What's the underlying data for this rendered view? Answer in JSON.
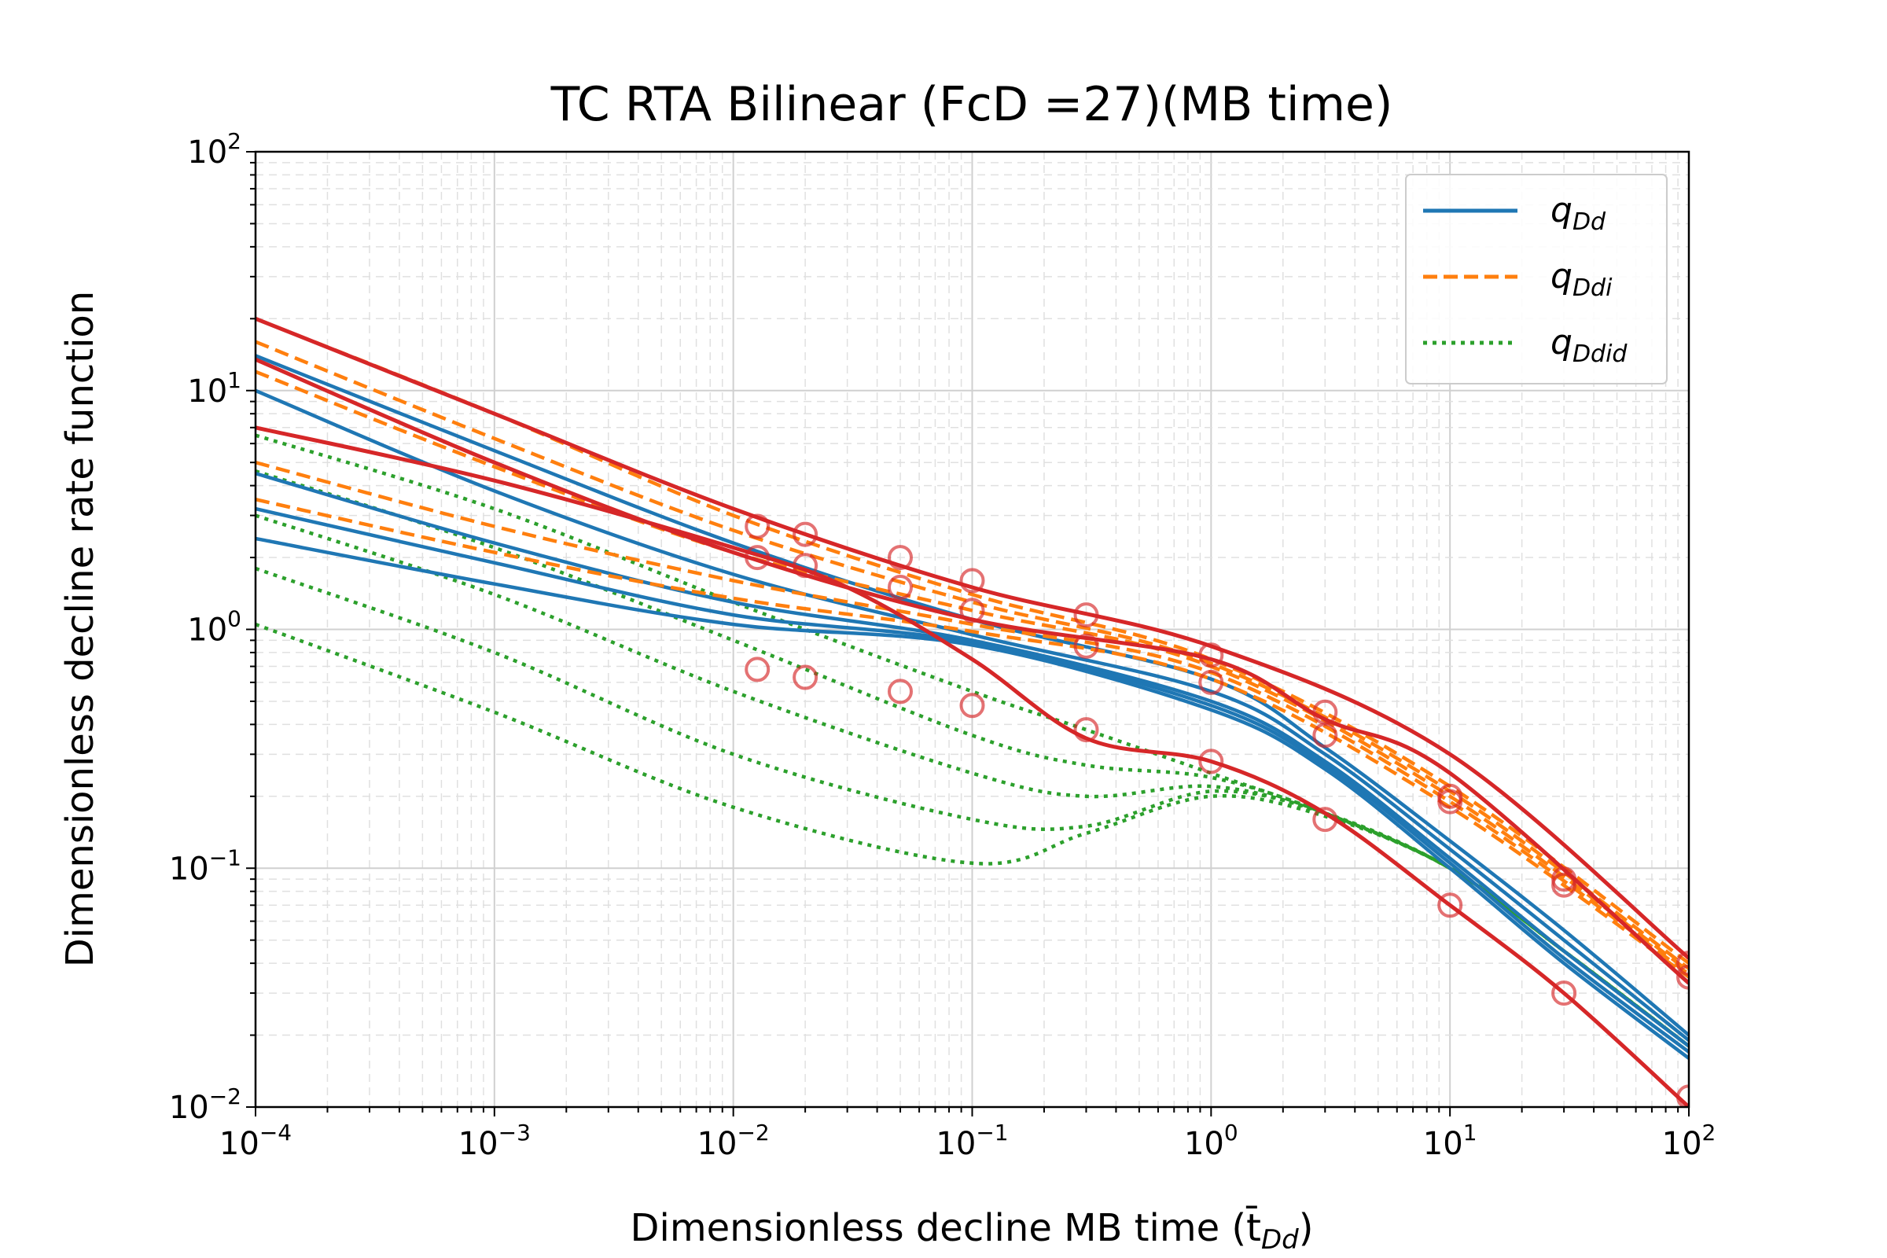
{
  "chart_data": {
    "type": "line",
    "title": "TC RTA Bilinear (FcD =27)(MB time)",
    "xlabel": "Dimensionless decline MB time (t̄",
    "xlabel_sub": "Dd",
    "xlabel_close": ")",
    "ylabel": "Dimensionless decline rate function",
    "x_scale": "log",
    "y_scale": "log",
    "xlim": [
      0.0001,
      100
    ],
    "ylim": [
      0.01,
      100
    ],
    "grid": true,
    "legend_position": "upper right",
    "x_ticks": [
      {
        "base": "10",
        "exp": "−4",
        "value": 0.0001
      },
      {
        "base": "10",
        "exp": "−3",
        "value": 0.001
      },
      {
        "base": "10",
        "exp": "−2",
        "value": 0.01
      },
      {
        "base": "10",
        "exp": "−1",
        "value": 0.1
      },
      {
        "base": "10",
        "exp": "0",
        "value": 1
      },
      {
        "base": "10",
        "exp": "1",
        "value": 10
      },
      {
        "base": "10",
        "exp": "2",
        "value": 100
      }
    ],
    "y_ticks": [
      {
        "base": "10",
        "exp": "−2",
        "value": 0.01
      },
      {
        "base": "10",
        "exp": "−1",
        "value": 0.1
      },
      {
        "base": "10",
        "exp": "0",
        "value": 1
      },
      {
        "base": "10",
        "exp": "1",
        "value": 10
      },
      {
        "base": "10",
        "exp": "2",
        "value": 100
      }
    ],
    "legend": [
      {
        "label": "q",
        "sub": "Dd",
        "color": "#1f77b4",
        "style": "solid"
      },
      {
        "label": "q",
        "sub": "Ddi",
        "color": "#ff7f0e",
        "style": "dashed"
      },
      {
        "label": "q",
        "sub": "Ddid",
        "color": "#2ca02c",
        "style": "dotted"
      }
    ],
    "colors": {
      "qDd": "#1f77b4",
      "qDdi": "#ff7f0e",
      "qDdid": "#2ca02c",
      "fit": "#d62728",
      "observed": "#d62728"
    },
    "series": [
      {
        "group": "qDd",
        "values": [
          [
            0.0001,
            14
          ],
          [
            0.001,
            5.6
          ],
          [
            0.01,
            2.3
          ],
          [
            0.1,
            1.1
          ],
          [
            1,
            0.62
          ],
          [
            3,
            0.32
          ],
          [
            10,
            0.13
          ],
          [
            30,
            0.055
          ],
          [
            100,
            0.02
          ]
        ]
      },
      {
        "group": "qDd",
        "values": [
          [
            0.0001,
            10
          ],
          [
            0.001,
            3.8
          ],
          [
            0.01,
            1.7
          ],
          [
            0.1,
            0.95
          ],
          [
            1,
            0.55
          ],
          [
            3,
            0.3
          ],
          [
            10,
            0.12
          ],
          [
            30,
            0.05
          ],
          [
            100,
            0.019
          ]
        ]
      },
      {
        "group": "qDd",
        "values": [
          [
            0.0001,
            4.5
          ],
          [
            0.001,
            2.3
          ],
          [
            0.01,
            1.3
          ],
          [
            0.1,
            0.9
          ],
          [
            1,
            0.5
          ],
          [
            3,
            0.28
          ],
          [
            10,
            0.11
          ],
          [
            30,
            0.045
          ],
          [
            100,
            0.018
          ]
        ]
      },
      {
        "group": "qDd",
        "values": [
          [
            0.0001,
            3.2
          ],
          [
            0.001,
            1.9
          ],
          [
            0.01,
            1.15
          ],
          [
            0.1,
            0.88
          ],
          [
            1,
            0.48
          ],
          [
            3,
            0.27
          ],
          [
            10,
            0.105
          ],
          [
            30,
            0.042
          ],
          [
            100,
            0.017
          ]
        ]
      },
      {
        "group": "qDd",
        "values": [
          [
            0.0001,
            2.4
          ],
          [
            0.001,
            1.55
          ],
          [
            0.01,
            1.05
          ],
          [
            0.1,
            0.86
          ],
          [
            1,
            0.46
          ],
          [
            3,
            0.26
          ],
          [
            10,
            0.1
          ],
          [
            30,
            0.04
          ],
          [
            100,
            0.016
          ]
        ]
      },
      {
        "group": "qDdi",
        "values": [
          [
            0.0001,
            20
          ],
          [
            0.001,
            8
          ],
          [
            0.01,
            3
          ],
          [
            0.1,
            1.4
          ],
          [
            1,
            0.75
          ],
          [
            10,
            0.22
          ],
          [
            100,
            0.04
          ]
        ]
      },
      {
        "group": "qDdi",
        "values": [
          [
            0.0001,
            16
          ],
          [
            0.001,
            6.3
          ],
          [
            0.01,
            2.6
          ],
          [
            0.1,
            1.3
          ],
          [
            1,
            0.72
          ],
          [
            10,
            0.21
          ],
          [
            100,
            0.038
          ]
        ]
      },
      {
        "group": "qDdi",
        "values": [
          [
            0.0001,
            12
          ],
          [
            0.001,
            4.8
          ],
          [
            0.01,
            2.1
          ],
          [
            0.1,
            1.2
          ],
          [
            1,
            0.7
          ],
          [
            10,
            0.2
          ],
          [
            100,
            0.037
          ]
        ]
      },
      {
        "group": "qDdi",
        "values": [
          [
            0.0001,
            5
          ],
          [
            0.001,
            2.7
          ],
          [
            0.01,
            1.6
          ],
          [
            0.1,
            1.05
          ],
          [
            1,
            0.66
          ],
          [
            10,
            0.19
          ],
          [
            100,
            0.036
          ]
        ]
      },
      {
        "group": "qDdi",
        "values": [
          [
            0.0001,
            3.5
          ],
          [
            0.001,
            2.1
          ],
          [
            0.01,
            1.35
          ],
          [
            0.1,
            0.98
          ],
          [
            1,
            0.62
          ],
          [
            10,
            0.18
          ],
          [
            100,
            0.035
          ]
        ]
      },
      {
        "group": "qDdid",
        "values": [
          [
            0.0001,
            6.5
          ],
          [
            0.001,
            3.2
          ],
          [
            0.01,
            1.3
          ],
          [
            0.1,
            0.55
          ],
          [
            0.3,
            0.38
          ],
          [
            1,
            0.25
          ],
          [
            3,
            0.17
          ],
          [
            10,
            0.1
          ],
          [
            30,
            0.045
          ],
          [
            100,
            0.018
          ]
        ]
      },
      {
        "group": "qDdid",
        "values": [
          [
            0.0001,
            4.6
          ],
          [
            0.001,
            2.2
          ],
          [
            0.01,
            0.9
          ],
          [
            0.1,
            0.36
          ],
          [
            0.3,
            0.27
          ],
          [
            1,
            0.24
          ],
          [
            3,
            0.17
          ],
          [
            10,
            0.1
          ],
          [
            30,
            0.045
          ],
          [
            100,
            0.018
          ]
        ]
      },
      {
        "group": "qDdid",
        "values": [
          [
            0.0001,
            3
          ],
          [
            0.001,
            1.4
          ],
          [
            0.01,
            0.55
          ],
          [
            0.1,
            0.25
          ],
          [
            0.3,
            0.2
          ],
          [
            1,
            0.22
          ],
          [
            3,
            0.17
          ],
          [
            10,
            0.1
          ],
          [
            30,
            0.045
          ],
          [
            100,
            0.018
          ]
        ]
      },
      {
        "group": "qDdid",
        "values": [
          [
            0.0001,
            1.8
          ],
          [
            0.001,
            0.8
          ],
          [
            0.01,
            0.3
          ],
          [
            0.1,
            0.16
          ],
          [
            0.3,
            0.15
          ],
          [
            1,
            0.21
          ],
          [
            3,
            0.17
          ],
          [
            10,
            0.1
          ],
          [
            30,
            0.045
          ],
          [
            100,
            0.018
          ]
        ]
      },
      {
        "group": "qDdid",
        "values": [
          [
            0.0001,
            1.05
          ],
          [
            0.001,
            0.45
          ],
          [
            0.01,
            0.18
          ],
          [
            0.1,
            0.105
          ],
          [
            0.3,
            0.14
          ],
          [
            1,
            0.2
          ],
          [
            3,
            0.165
          ],
          [
            10,
            0.1
          ],
          [
            30,
            0.045
          ],
          [
            100,
            0.018
          ]
        ]
      },
      {
        "group": "fit",
        "values": [
          [
            0.0001,
            20
          ],
          [
            0.001,
            8
          ],
          [
            0.01,
            3.2
          ],
          [
            0.1,
            1.5
          ],
          [
            1,
            0.85
          ],
          [
            10,
            0.3
          ],
          [
            100,
            0.042
          ]
        ]
      },
      {
        "group": "fit",
        "values": [
          [
            0.0001,
            13.5
          ],
          [
            0.001,
            5
          ],
          [
            0.01,
            2.1
          ],
          [
            0.1,
            1.1
          ],
          [
            1,
            0.75
          ],
          [
            3,
            0.42
          ],
          [
            10,
            0.25
          ],
          [
            100,
            0.033
          ]
        ]
      },
      {
        "group": "fit",
        "values": [
          [
            0.0001,
            7
          ],
          [
            0.001,
            4.2
          ],
          [
            0.01,
            2.2
          ],
          [
            0.03,
            1.5
          ],
          [
            0.1,
            0.75
          ],
          [
            0.3,
            0.35
          ],
          [
            1,
            0.28
          ],
          [
            3,
            0.17
          ],
          [
            10,
            0.07
          ],
          [
            30,
            0.03
          ],
          [
            100,
            0.01
          ]
        ]
      },
      {
        "group": "observed",
        "values": [
          [
            0.0126,
            2.7
          ],
          [
            0.02,
            2.5
          ],
          [
            0.05,
            2
          ],
          [
            0.1,
            1.6
          ],
          [
            0.3,
            1.15
          ],
          [
            1,
            0.78
          ],
          [
            3,
            0.45
          ],
          [
            10,
            0.2
          ],
          [
            30,
            0.09
          ],
          [
            100,
            0.04
          ]
        ]
      },
      {
        "group": "observed",
        "values": [
          [
            0.0126,
            2
          ],
          [
            0.02,
            1.85
          ],
          [
            0.05,
            1.5
          ],
          [
            0.1,
            1.2
          ],
          [
            0.3,
            0.85
          ],
          [
            1,
            0.6
          ],
          [
            3,
            0.36
          ],
          [
            10,
            0.19
          ],
          [
            30,
            0.085
          ],
          [
            100,
            0.035
          ]
        ]
      },
      {
        "group": "observed",
        "values": [
          [
            0.0126,
            0.68
          ],
          [
            0.02,
            0.63
          ],
          [
            0.05,
            0.55
          ],
          [
            0.1,
            0.48
          ],
          [
            0.3,
            0.38
          ],
          [
            1,
            0.28
          ],
          [
            3,
            0.16
          ],
          [
            10,
            0.07
          ],
          [
            30,
            0.03
          ],
          [
            100,
            0.011
          ]
        ]
      }
    ]
  }
}
